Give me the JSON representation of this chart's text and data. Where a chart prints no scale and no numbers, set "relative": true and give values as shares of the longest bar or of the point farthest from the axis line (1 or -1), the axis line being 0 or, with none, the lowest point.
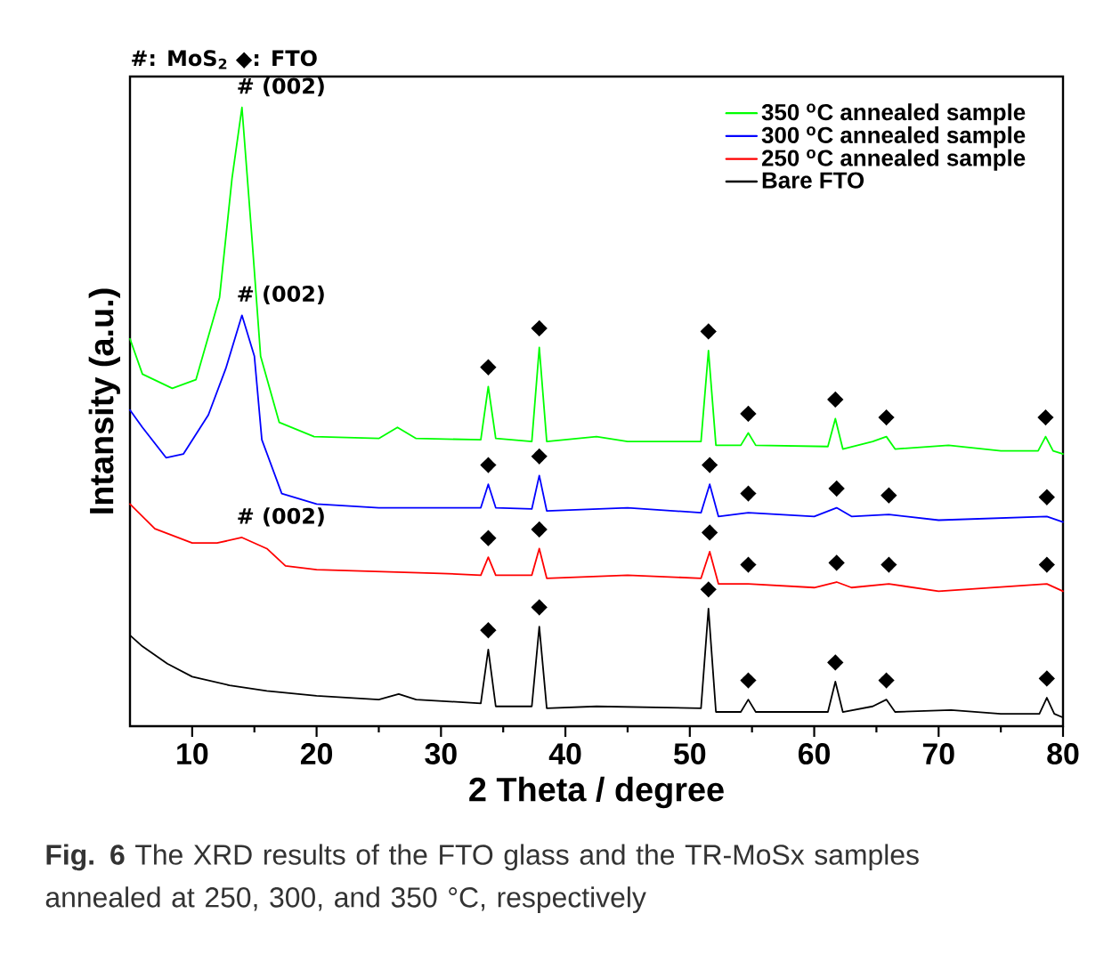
{
  "chart_data": {
    "type": "line",
    "relative": true,
    "xlabel": "2 Theta / degree",
    "ylabel": "Intansity (a.u.)",
    "xlim": [
      5,
      80
    ],
    "xticks": [
      10,
      20,
      30,
      40,
      50,
      60,
      70,
      80
    ],
    "legend": "top right",
    "series": [
      {
        "name": "350 $^{o}$C annealed sample",
        "color": "#00ff00",
        "x": [
          5,
          6,
          8.4,
          10.3,
          12.2,
          13.2,
          14,
          14.8,
          15.5,
          17,
          19.8,
          25,
          26.5,
          28,
          33.2,
          33.8,
          34.4,
          37.3,
          37.9,
          38.5,
          42.5,
          45,
          50.9,
          51.5,
          52.1,
          54.1,
          54.7,
          55.3,
          61.1,
          61.7,
          62.3,
          64.7,
          65.8,
          66.5,
          70.8,
          75,
          78,
          78.6,
          79.2,
          80
        ],
        "values": [
          0.626,
          0.569,
          0.546,
          0.56,
          0.693,
          0.885,
          1.0,
          0.79,
          0.598,
          0.491,
          0.468,
          0.465,
          0.483,
          0.465,
          0.463,
          0.549,
          0.465,
          0.46,
          0.612,
          0.46,
          0.468,
          0.46,
          0.46,
          0.607,
          0.454,
          0.454,
          0.474,
          0.454,
          0.452,
          0.497,
          0.448,
          0.46,
          0.468,
          0.448,
          0.454,
          0.445,
          0.445,
          0.468,
          0.445,
          0.44
        ]
      },
      {
        "name": "300 $^{o}$C annealed sample",
        "color": "#0000ff",
        "x": [
          5,
          6,
          7.9,
          9.3,
          11.3,
          12.7,
          14,
          15,
          15.6,
          17.2,
          20,
          25,
          30,
          33.2,
          33.8,
          34.4,
          37.3,
          37.9,
          38.5,
          45,
          50.9,
          51.6,
          52.3,
          54.7,
          60,
          61.8,
          63,
          66,
          70,
          78.7,
          80
        ],
        "values": [
          0.511,
          0.483,
          0.434,
          0.44,
          0.503,
          0.578,
          0.664,
          0.598,
          0.463,
          0.376,
          0.359,
          0.353,
          0.353,
          0.353,
          0.391,
          0.353,
          0.351,
          0.405,
          0.348,
          0.353,
          0.345,
          0.391,
          0.339,
          0.345,
          0.339,
          0.353,
          0.339,
          0.342,
          0.333,
          0.339,
          0.33
        ]
      },
      {
        "name": "250 $^{o}$C annealed sample",
        "color": "#ff0000",
        "x": [
          5,
          7,
          10,
          12,
          14,
          16,
          17.5,
          20,
          25,
          30,
          33.2,
          33.8,
          34.4,
          37.3,
          37.9,
          38.5,
          45,
          50.9,
          51.6,
          52.3,
          54.7,
          60,
          61.8,
          63,
          66,
          70,
          78.7,
          80
        ],
        "values": [
          0.359,
          0.319,
          0.296,
          0.296,
          0.305,
          0.287,
          0.259,
          0.253,
          0.25,
          0.247,
          0.244,
          0.273,
          0.244,
          0.244,
          0.287,
          0.239,
          0.244,
          0.239,
          0.282,
          0.23,
          0.23,
          0.224,
          0.233,
          0.224,
          0.23,
          0.218,
          0.23,
          0.218
        ]
      },
      {
        "name": "Bare FTO",
        "color": "#000000",
        "x": [
          5,
          6,
          8,
          10,
          13,
          16,
          20,
          25,
          26.6,
          28,
          33.2,
          33.8,
          34.4,
          37.3,
          37.9,
          38.5,
          42.5,
          50.9,
          51.5,
          52.1,
          54.1,
          54.7,
          55.3,
          61.1,
          61.7,
          62.3,
          64.7,
          65.8,
          66.5,
          71,
          75,
          78.1,
          78.7,
          79.3,
          80
        ],
        "values": [
          0.147,
          0.129,
          0.101,
          0.08,
          0.066,
          0.057,
          0.049,
          0.043,
          0.052,
          0.043,
          0.037,
          0.124,
          0.032,
          0.032,
          0.161,
          0.029,
          0.032,
          0.029,
          0.19,
          0.023,
          0.023,
          0.043,
          0.023,
          0.023,
          0.072,
          0.023,
          0.032,
          0.043,
          0.023,
          0.026,
          0.02,
          0.02,
          0.046,
          0.02,
          0.014
        ]
      }
    ],
    "annotations": [
      "#: MoS$_{2}$ ◆: FTO",
      {
        "text": "# (002)",
        "x": 14,
        "y": 1.0
      },
      {
        "text": "# (002)",
        "x": 14,
        "y": 0.664
      },
      {
        "text": "# (002)",
        "x": 14,
        "y": 0.305
      },
      {
        "text": "◆",
        "x": 33.8,
        "y": 0.549
      },
      {
        "text": "◆",
        "x": 37.9,
        "y": 0.612
      },
      {
        "text": "◆",
        "x": 51.5,
        "y": 0.607
      },
      {
        "text": "◆",
        "x": 54.7,
        "y": 0.474
      },
      {
        "text": "◆",
        "x": 61.7,
        "y": 0.497
      },
      {
        "text": "◆",
        "x": 65.8,
        "y": 0.468
      },
      {
        "text": "◆",
        "x": 78.6,
        "y": 0.468
      },
      {
        "text": "◆",
        "x": 33.8,
        "y": 0.391
      },
      {
        "text": "◆",
        "x": 37.9,
        "y": 0.405
      },
      {
        "text": "◆",
        "x": 51.6,
        "y": 0.391
      },
      {
        "text": "◆",
        "x": 54.7,
        "y": 0.345
      },
      {
        "text": "◆",
        "x": 61.8,
        "y": 0.353
      },
      {
        "text": "◆",
        "x": 66,
        "y": 0.342
      },
      {
        "text": "◆",
        "x": 78.7,
        "y": 0.339
      },
      {
        "text": "◆",
        "x": 33.8,
        "y": 0.273
      },
      {
        "text": "◆",
        "x": 37.9,
        "y": 0.287
      },
      {
        "text": "◆",
        "x": 51.6,
        "y": 0.282
      },
      {
        "text": "◆",
        "x": 54.7,
        "y": 0.23
      },
      {
        "text": "◆",
        "x": 61.8,
        "y": 0.233
      },
      {
        "text": "◆",
        "x": 66,
        "y": 0.23
      },
      {
        "text": "◆",
        "x": 78.7,
        "y": 0.23
      },
      {
        "text": "◆",
        "x": 33.8,
        "y": 0.124
      },
      {
        "text": "◆",
        "x": 37.9,
        "y": 0.161
      },
      {
        "text": "◆",
        "x": 51.5,
        "y": 0.19
      },
      {
        "text": "◆",
        "x": 54.7,
        "y": 0.043
      },
      {
        "text": "◆",
        "x": 61.7,
        "y": 0.072
      },
      {
        "text": "◆",
        "x": 65.8,
        "y": 0.043
      },
      {
        "text": "◆",
        "x": 78.7,
        "y": 0.046
      },
      "**Fig. 6** The XRD results of the FTO glass and the TR-MoSx samples annealed at 250, 300, and 350 °C, respectively"
    ]
  }
}
